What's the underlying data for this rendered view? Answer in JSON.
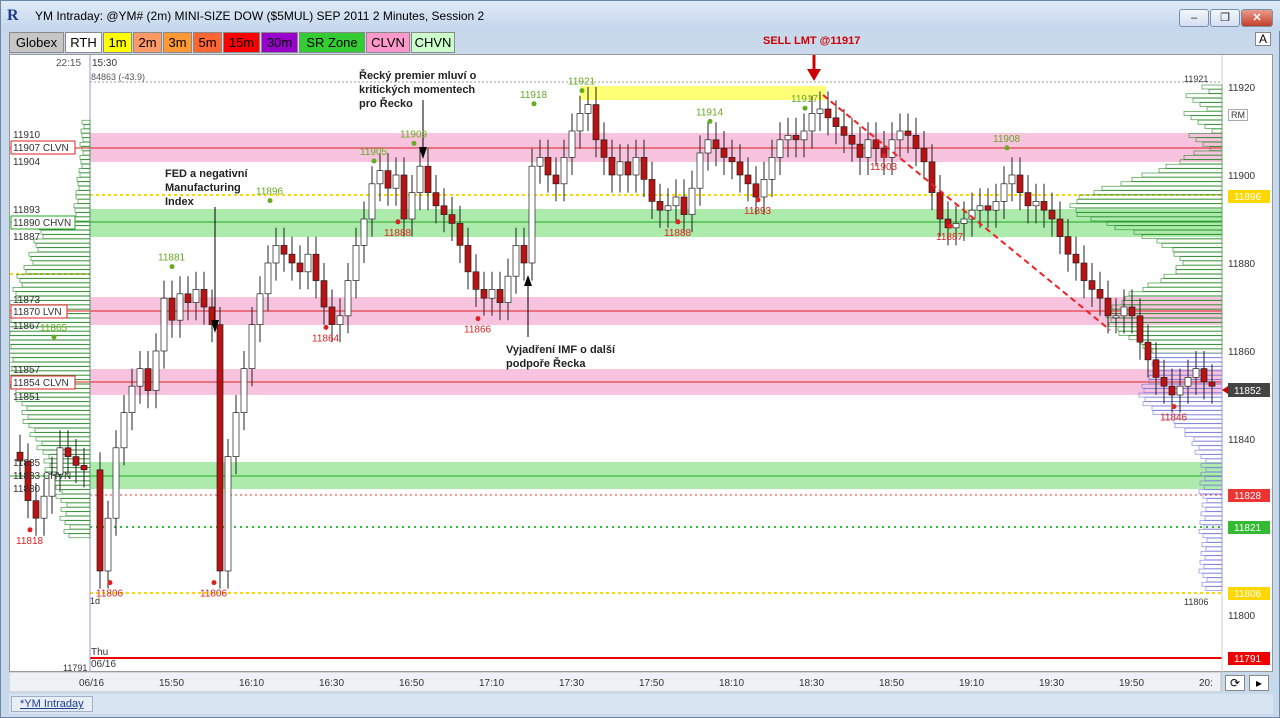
{
  "window": {
    "title": "YM Intraday: @YM# (2m) MINI-SIZE DOW ($5MUL) SEP 2011 2 Minutes, Session 2",
    "minimize": "–",
    "restore": "❐",
    "close": "✕",
    "app_icon": "R"
  },
  "toolbar": {
    "buttons": [
      {
        "label": "Globex",
        "bg": "#c6c6c6"
      },
      {
        "label": "RTH",
        "bg": "#ffffff"
      },
      {
        "label": "1m",
        "bg": "#ffff00"
      },
      {
        "label": "2m",
        "bg": "#ff9966"
      },
      {
        "label": "3m",
        "bg": "#ff9933"
      },
      {
        "label": "5m",
        "bg": "#ff6633"
      },
      {
        "label": "15m",
        "bg": "#ff0000"
      },
      {
        "label": "30m",
        "bg": "#9900cc"
      },
      {
        "label": "SR Zone",
        "bg": "#33cc33"
      },
      {
        "label": "CLVN",
        "bg": "#ff99cc"
      },
      {
        "label": "CHVN",
        "bg": "#ccffcc"
      }
    ],
    "right_label": "A",
    "rm_label": "RM"
  },
  "header_info": {
    "time_left": "22:15",
    "time": "15:30",
    "info": "84863 (-43.9)"
  },
  "left_levels": {
    "l11910": "11910",
    "l11907": "11907 CLVN",
    "l11904": "11904",
    "l11893": "11893",
    "l11890": "11890 CHVN",
    "l11887": "11887",
    "l11873": "11873",
    "l11870": "11870 LVN",
    "l11867": "11867",
    "l11857": "11857",
    "l11854": "11854 CLVN",
    "l11851": "11851",
    "l11835": "11835",
    "l11833": "11833 CHVN",
    "l11830": "11830",
    "l11791": "11791",
    "l1d": "1d",
    "day": "Thu",
    "date": "06/16"
  },
  "price_axis": {
    "ticks": [
      "11920",
      "11900",
      "11880",
      "11860",
      "11840",
      "11800"
    ],
    "top_label": "11921",
    "bottom_label": "11806",
    "markers": [
      {
        "label": "11896",
        "color": "#ffd700",
        "text": "#fff"
      },
      {
        "label": "11852",
        "color": "#444444",
        "text": "#fff"
      },
      {
        "label": "11828",
        "color": "#ee3333",
        "text": "#fff"
      },
      {
        "label": "11821",
        "color": "#33bb33",
        "text": "#fff"
      },
      {
        "label": "11806",
        "color": "#ffd700",
        "text": "#fff"
      },
      {
        "label": "11791",
        "color": "#ee0000",
        "text": "#fff"
      }
    ]
  },
  "time_axis": [
    "06/16",
    "15:50",
    "16:10",
    "16:30",
    "16:50",
    "17:10",
    "17:30",
    "17:50",
    "18:10",
    "18:30",
    "18:50",
    "19:10",
    "19:30",
    "19:50",
    "20:"
  ],
  "highs": [
    "11881",
    "11896",
    "11905",
    "11909",
    "11918",
    "11921",
    "11914",
    "11917",
    "11908",
    "11865"
  ],
  "lows": [
    "11818",
    "11806",
    "11806",
    "11864",
    "11888",
    "11866",
    "11888",
    "11893",
    "11903",
    "11887",
    "11846"
  ],
  "annotations": {
    "sell": "SELL LMT @11917",
    "greek": "Řecký premier mluví o kritických momentech pro Řecko",
    "greek_lines": [
      "Řecký premier mluví o",
      "kritických momentech",
      "pro Řecko"
    ],
    "fed_lines": [
      "FED a negativní",
      "Manufacturing",
      "Index"
    ],
    "imf_lines": [
      "Vyjadření IMF o další",
      "podpoře Řecka"
    ]
  },
  "tabbar": {
    "tab": "*YM Intraday"
  },
  "bottom": {
    "refresh_icon": "⟳",
    "nav_icon": "▸"
  }
}
